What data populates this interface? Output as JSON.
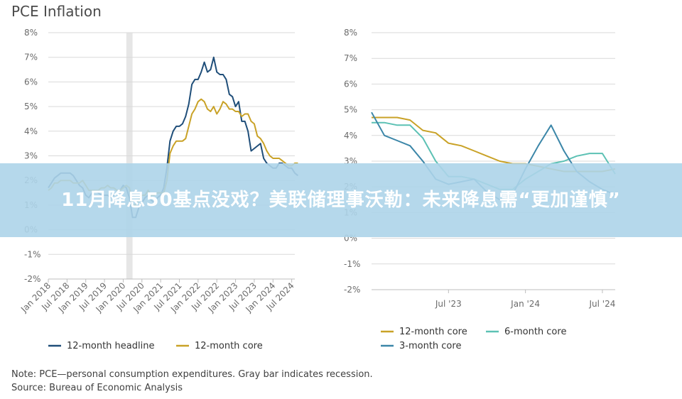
{
  "title": "PCE Inflation",
  "banner": {
    "headline": "11月降息50基点没戏？美联储理事沃勒：未来降息需“更加谨慎”"
  },
  "notes": {
    "note": "Note: PCE—personal consumption expenditures. Gray bar indicates recession.",
    "source": "Source: Bureau of Economic Analysis"
  },
  "colors": {
    "headline": "#1f4e79",
    "core": "#c9a227",
    "six_month": "#5cc1b4",
    "three_month": "#3b86a8",
    "recession": "#e6e6e6"
  },
  "chart_data": [
    {
      "type": "line",
      "ylim": [
        -2,
        8
      ],
      "yticks": [
        "-2%",
        "-1%",
        "0%",
        "1%",
        "2%",
        "3%",
        "4%",
        "5%",
        "6%",
        "7%",
        "8%"
      ],
      "xticks": [
        "Jan 2018",
        "Jul 2018",
        "Jan 2019",
        "Jul 2019",
        "Jan 2020",
        "Jul 2020",
        "Jan 2021",
        "Jul 2021",
        "Jan 2022",
        "Jul 2022",
        "Jan 2023",
        "Jul 2023",
        "Jan 2024",
        "Jul 2024"
      ],
      "x_start": "Jan 2018",
      "x_end": "Aug 2024",
      "recession": [
        "Feb 2020",
        "Apr 2020"
      ],
      "legend_position": "bottom",
      "series": [
        {
          "name": "12-month headline",
          "values": [
            1.7,
            1.9,
            2.1,
            2.2,
            2.3,
            2.3,
            2.3,
            2.3,
            2.2,
            2.0,
            1.8,
            1.7,
            1.4,
            1.3,
            1.5,
            1.6,
            1.5,
            1.4,
            1.4,
            1.4,
            1.3,
            1.4,
            1.5,
            1.6,
            1.8,
            1.7,
            1.3,
            0.5,
            0.5,
            0.9,
            1.1,
            1.3,
            1.4,
            1.2,
            1.1,
            1.3,
            1.4,
            1.7,
            2.5,
            3.6,
            4.0,
            4.2,
            4.2,
            4.3,
            4.6,
            5.1,
            5.9,
            6.1,
            6.1,
            6.4,
            6.8,
            6.4,
            6.5,
            7.0,
            6.4,
            6.3,
            6.3,
            6.1,
            5.5,
            5.4,
            5.0,
            5.2,
            4.4,
            4.4,
            4.0,
            3.2,
            3.3,
            3.4,
            3.5,
            2.9,
            2.7,
            2.6,
            2.5,
            2.5,
            2.7,
            2.7,
            2.6,
            2.5,
            2.5,
            2.3,
            2.2
          ]
        },
        {
          "name": "12-month core",
          "values": [
            1.6,
            1.7,
            1.9,
            1.9,
            2.0,
            2.0,
            2.0,
            2.0,
            1.9,
            1.9,
            1.9,
            2.0,
            1.8,
            1.6,
            1.6,
            1.6,
            1.6,
            1.7,
            1.7,
            1.8,
            1.7,
            1.7,
            1.6,
            1.6,
            1.7,
            1.8,
            1.7,
            1.0,
            1.0,
            1.2,
            1.4,
            1.4,
            1.6,
            1.4,
            1.4,
            1.5,
            1.5,
            1.5,
            2.0,
            3.1,
            3.4,
            3.6,
            3.6,
            3.6,
            3.7,
            4.2,
            4.7,
            4.9,
            5.2,
            5.3,
            5.2,
            4.9,
            4.8,
            5.0,
            4.7,
            4.9,
            5.2,
            5.1,
            4.9,
            4.9,
            4.8,
            4.8,
            4.6,
            4.7,
            4.7,
            4.4,
            4.3,
            3.8,
            3.7,
            3.5,
            3.2,
            3.0,
            2.9,
            2.9,
            2.9,
            2.8,
            2.7,
            2.6,
            2.6,
            2.7,
            2.7
          ]
        }
      ]
    },
    {
      "type": "line",
      "ylim": [
        -2,
        8
      ],
      "yticks": [
        "-2%",
        "-1%",
        "0%",
        "1%",
        "2%",
        "3%",
        "4%",
        "5%",
        "6%",
        "7%",
        "8%"
      ],
      "xticks": [
        "Jul '23",
        "Jan '24",
        "Jul '24"
      ],
      "x_start": "Jan 2023",
      "x_end": "Aug 2024",
      "legend_position": "bottom",
      "series": [
        {
          "name": "12-month core",
          "values": [
            4.7,
            4.7,
            4.7,
            4.6,
            4.2,
            4.1,
            3.7,
            3.6,
            3.4,
            3.2,
            3.0,
            2.9,
            2.9,
            2.8,
            2.7,
            2.6,
            2.6,
            2.6,
            2.6,
            2.7
          ]
        },
        {
          "name": "6-month core",
          "values": [
            4.5,
            4.5,
            4.4,
            4.4,
            3.9,
            3.0,
            2.4,
            2.4,
            2.3,
            2.1,
            1.9,
            1.9,
            2.3,
            2.6,
            2.9,
            3.0,
            3.2,
            3.3,
            3.3,
            2.5
          ]
        },
        {
          "name": "3-month core",
          "values": [
            4.9,
            4.0,
            3.8,
            3.6,
            3.0,
            2.3,
            2.1,
            2.2,
            2.3,
            1.8,
            1.5,
            1.7,
            2.7,
            3.6,
            4.4,
            3.4,
            2.6,
            2.2,
            1.9,
            1.7
          ]
        }
      ]
    }
  ]
}
